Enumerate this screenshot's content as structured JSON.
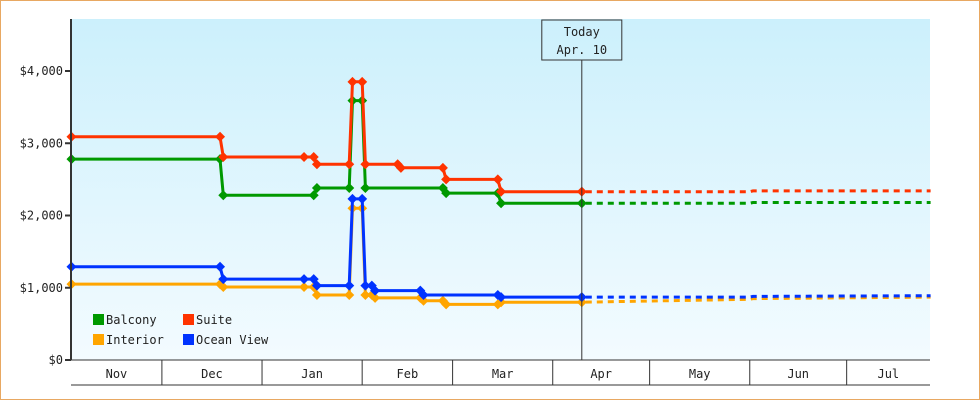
{
  "chart_data": {
    "type": "line",
    "step": true,
    "x_type": "date",
    "x_range": [
      "11-03",
      "07-27"
    ],
    "ylim": [
      0,
      4700
    ],
    "y_ticks": [
      0,
      1000,
      2000,
      3000,
      4000
    ],
    "y_tick_labels": [
      "$0",
      "$1,000",
      "$2,000",
      "$3,000",
      "$4,000"
    ],
    "x_tick_labels": [
      "Nov",
      "Dec",
      "Jan",
      "Feb",
      "Mar",
      "Apr",
      "May",
      "Jun",
      "Jul"
    ],
    "x_tick_months": [
      "11",
      "12",
      "01",
      "02",
      "03",
      "04",
      "05",
      "06",
      "07"
    ],
    "grid": false,
    "legend_placement": "bottom-left",
    "today": {
      "date": "04-10",
      "label_line1": "Today",
      "label_line2": "Apr. 10"
    },
    "background_gradient": [
      "#ccf0fc",
      "#f3fbff"
    ],
    "series": [
      {
        "name": "Balcony",
        "color": "#009900",
        "values": [
          [
            "11-03",
            2780
          ],
          [
            "12-19",
            2780
          ],
          [
            "12-20",
            2280
          ],
          [
            "01-17",
            2280
          ],
          [
            "01-18",
            2380
          ],
          [
            "01-28",
            2380
          ],
          [
            "01-29",
            3590
          ],
          [
            "02-01",
            3590
          ],
          [
            "02-02",
            2380
          ],
          [
            "02-26",
            2380
          ],
          [
            "02-27",
            2310
          ],
          [
            "03-15",
            2310
          ],
          [
            "03-16",
            2170
          ],
          [
            "04-10",
            2170
          ]
        ],
        "forecast": [
          [
            "04-10",
            2170
          ],
          [
            "06-01",
            2170
          ],
          [
            "06-02",
            2180
          ],
          [
            "07-27",
            2180
          ]
        ]
      },
      {
        "name": "Suite",
        "color": "#ff3300",
        "values": [
          [
            "11-03",
            3090
          ],
          [
            "12-19",
            3090
          ],
          [
            "12-20",
            2810
          ],
          [
            "01-14",
            2810
          ],
          [
            "01-17",
            2810
          ],
          [
            "01-18",
            2710
          ],
          [
            "01-28",
            2710
          ],
          [
            "01-29",
            3850
          ],
          [
            "02-01",
            3850
          ],
          [
            "02-02",
            2710
          ],
          [
            "02-12",
            2710
          ],
          [
            "02-13",
            2660
          ],
          [
            "02-26",
            2660
          ],
          [
            "02-27",
            2500
          ],
          [
            "03-15",
            2500
          ],
          [
            "03-16",
            2330
          ],
          [
            "04-10",
            2330
          ]
        ],
        "forecast": [
          [
            "04-10",
            2330
          ],
          [
            "06-01",
            2330
          ],
          [
            "06-02",
            2340
          ],
          [
            "07-27",
            2340
          ]
        ]
      },
      {
        "name": "Interior",
        "color": "#ffa500",
        "values": [
          [
            "11-03",
            1050
          ],
          [
            "12-19",
            1050
          ],
          [
            "12-20",
            1010
          ],
          [
            "01-14",
            1010
          ],
          [
            "01-17",
            1010
          ],
          [
            "01-18",
            900
          ],
          [
            "01-28",
            900
          ],
          [
            "01-29",
            2100
          ],
          [
            "02-01",
            2100
          ],
          [
            "02-02",
            900
          ],
          [
            "02-04",
            900
          ],
          [
            "02-05",
            860
          ],
          [
            "02-19",
            860
          ],
          [
            "02-20",
            820
          ],
          [
            "02-26",
            820
          ],
          [
            "02-27",
            770
          ],
          [
            "03-15",
            770
          ],
          [
            "03-16",
            800
          ],
          [
            "04-10",
            800
          ]
        ],
        "forecast": [
          [
            "04-10",
            800
          ],
          [
            "06-01",
            840
          ],
          [
            "06-02",
            850
          ],
          [
            "07-27",
            870
          ]
        ]
      },
      {
        "name": "Ocean View",
        "color": "#0033ff",
        "values": [
          [
            "11-03",
            1290
          ],
          [
            "12-19",
            1290
          ],
          [
            "12-20",
            1120
          ],
          [
            "01-14",
            1120
          ],
          [
            "01-17",
            1120
          ],
          [
            "01-18",
            1030
          ],
          [
            "01-28",
            1030
          ],
          [
            "01-29",
            2230
          ],
          [
            "02-01",
            2230
          ],
          [
            "02-02",
            1030
          ],
          [
            "02-04",
            1030
          ],
          [
            "02-05",
            960
          ],
          [
            "02-19",
            960
          ],
          [
            "02-20",
            900
          ],
          [
            "03-15",
            900
          ],
          [
            "03-16",
            870
          ],
          [
            "04-10",
            870
          ]
        ],
        "forecast": [
          [
            "04-10",
            870
          ],
          [
            "06-01",
            870
          ],
          [
            "06-02",
            880
          ],
          [
            "07-27",
            890
          ]
        ]
      }
    ]
  }
}
